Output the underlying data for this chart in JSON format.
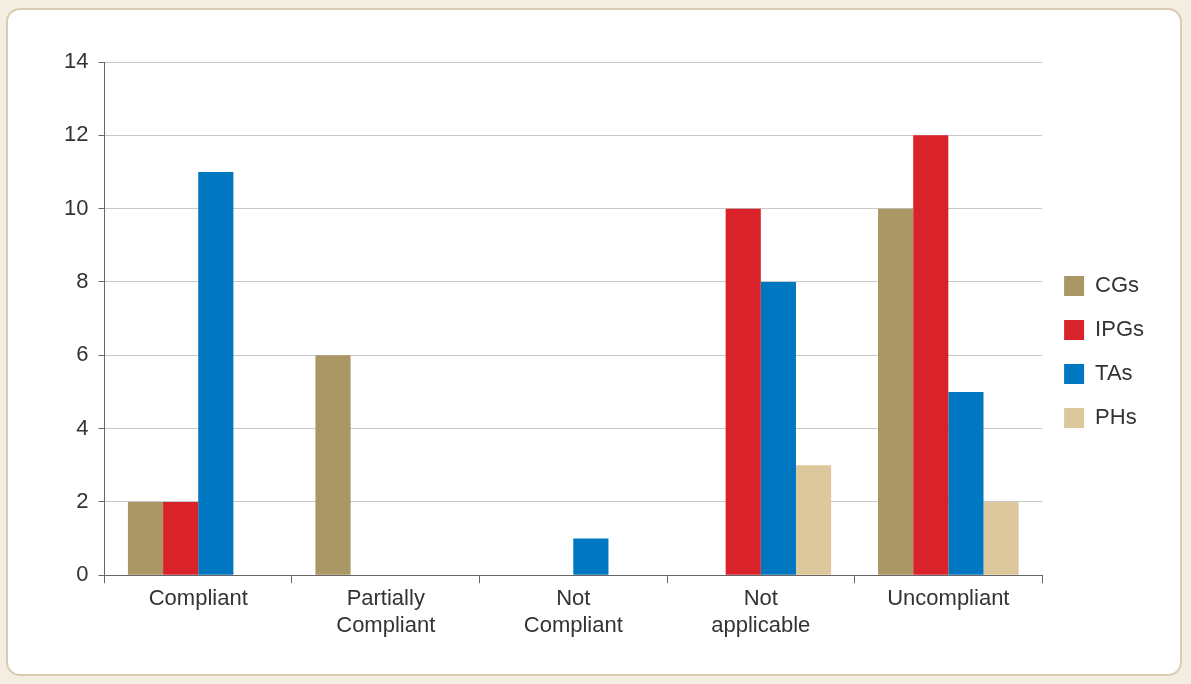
{
  "chart_data": {
    "type": "bar",
    "categories": [
      "Compliant",
      "Partially Compliant",
      "Not Compliant",
      "Not applicable",
      "Uncompliant"
    ],
    "series": [
      {
        "name": "CGs",
        "color": "#ab9765",
        "values": [
          2,
          6,
          0,
          0,
          10
        ]
      },
      {
        "name": "IPGs",
        "color": "#d9222a",
        "values": [
          2,
          0,
          0,
          10,
          12
        ]
      },
      {
        "name": "TAs",
        "color": "#0077c1",
        "values": [
          11,
          0,
          1,
          8,
          5
        ]
      },
      {
        "name": "PHs",
        "color": "#dcc89c",
        "values": [
          0,
          0,
          0,
          3,
          2
        ]
      }
    ],
    "ylim": [
      0,
      14
    ],
    "yticks": [
      0,
      2,
      4,
      6,
      8,
      10,
      12,
      14
    ],
    "grid": "y",
    "legend": "right"
  }
}
